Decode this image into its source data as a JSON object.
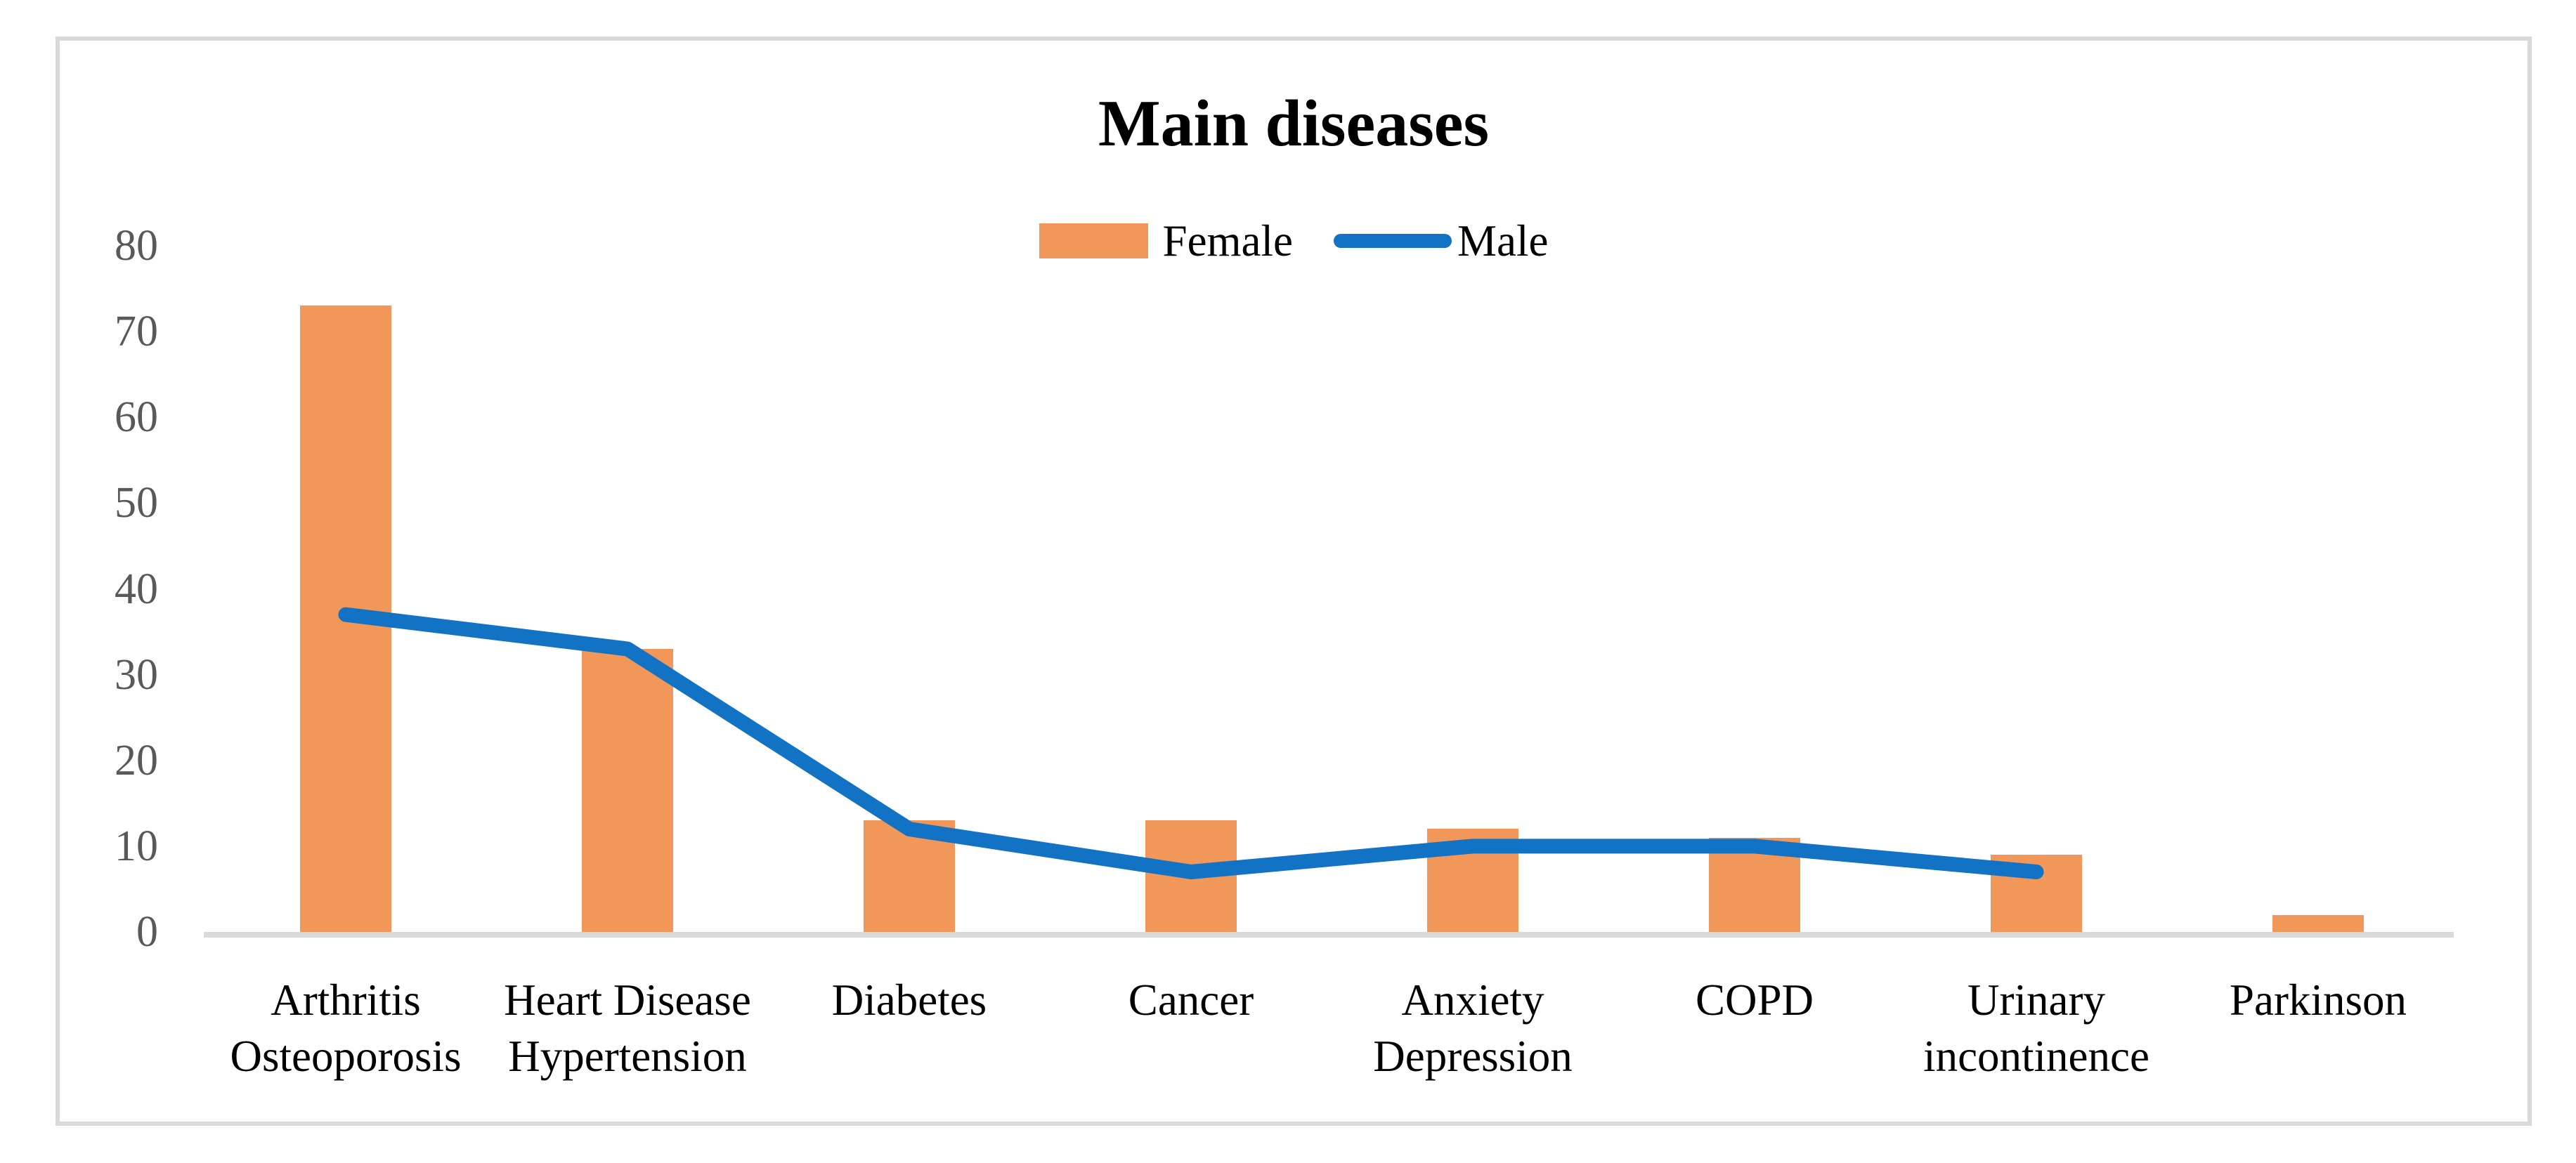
{
  "chart_data": {
    "type": "bar+line",
    "title": "Main diseases",
    "categories": [
      [
        "Arthritis",
        "Osteoporosis"
      ],
      [
        "Heart Disease",
        "Hypertension"
      ],
      [
        "Diabetes"
      ],
      [
        "Cancer"
      ],
      [
        "Anxiety",
        "Depression"
      ],
      [
        "COPD"
      ],
      [
        "Urinary",
        "incontinence"
      ],
      [
        "Parkinson"
      ]
    ],
    "series": [
      {
        "name": "Female",
        "type": "bar",
        "color": "#F1975A",
        "values": [
          73,
          33,
          13,
          13,
          12,
          11,
          9,
          2
        ]
      },
      {
        "name": "Male",
        "type": "line",
        "color": "#1272C4",
        "values": [
          37,
          33,
          12,
          7,
          10,
          10,
          7,
          null
        ]
      }
    ],
    "ylim": [
      0,
      80
    ],
    "yticks": [
      0,
      10,
      20,
      30,
      40,
      50,
      60,
      70,
      80
    ],
    "grid": false,
    "legend_position": "top-center",
    "axis_color": "#D9D9D9",
    "tick_text_color": "#595959",
    "label_text_color": "#000000"
  }
}
